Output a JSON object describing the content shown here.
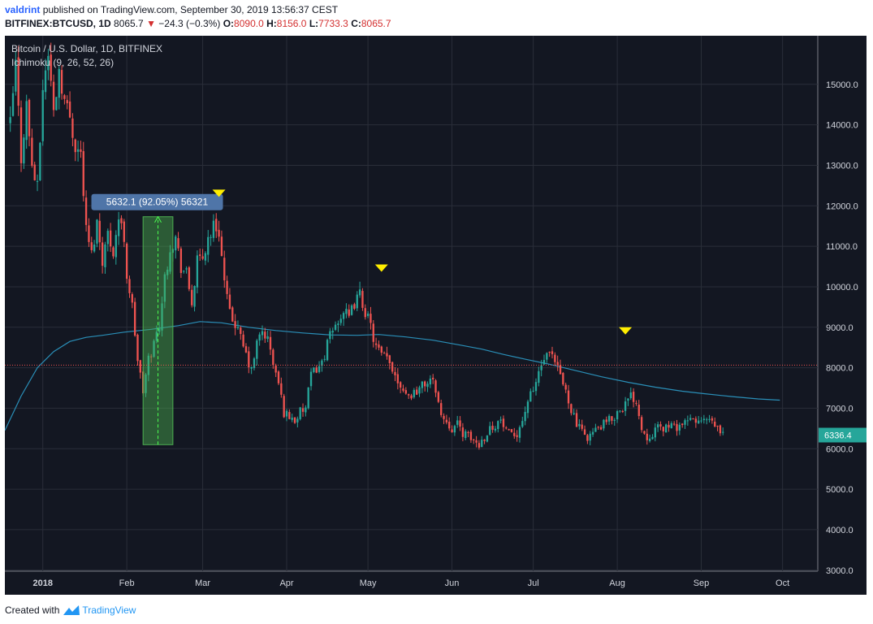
{
  "header": {
    "author": "valdrint",
    "published_text": "published on TradingView.com, September 30, 2019 13:56:37 CEST",
    "symbol": "BITFINEX:BTCUSD, 1D",
    "last": "8065.7",
    "change": "−24.3 (−0.3%)",
    "open_label": "O:",
    "open": "8090.0",
    "high_label": "H:",
    "high": "8156.0",
    "low_label": "L:",
    "low": "7733.3",
    "close_label": "C:",
    "close": "8065.7"
  },
  "legend": {
    "instrument": "Bitcoin / U.S. Dollar, 1D, BITFINEX",
    "indicator": "Ichimoku (9, 26, 52, 26)"
  },
  "footer": {
    "created_with": "Created with",
    "brand": "TradingView",
    "logo_icon": "tradingview-logo-icon"
  },
  "colors": {
    "background": "#131722",
    "up": "#26a69a",
    "down": "#ef5350",
    "ma_line": "#2a8fb8",
    "marker": "#ffee00",
    "price_badge": "#26a69a"
  },
  "chart_data": {
    "type": "candlestick",
    "y_ticks": [
      "15000.0",
      "14000.0",
      "13000.0",
      "12000.0",
      "11000.0",
      "10000.0",
      "9000.0",
      "8000.0",
      "7000.0",
      "6000.0",
      "5000.0",
      "4000.0",
      "3000.0"
    ],
    "y_tick_values": [
      15000,
      14000,
      13000,
      12000,
      11000,
      10000,
      9000,
      8000,
      7000,
      6000,
      5000,
      4000,
      3000
    ],
    "ylim": [
      2975,
      16200
    ],
    "x_ticks": [
      {
        "label": "2018",
        "day": 0
      },
      {
        "label": "Feb",
        "day": 31
      },
      {
        "label": "Mar",
        "day": 59
      },
      {
        "label": "Apr",
        "day": 90
      },
      {
        "label": "May",
        "day": 120
      },
      {
        "label": "Jun",
        "day": 151
      },
      {
        "label": "Jul",
        "day": 181
      },
      {
        "label": "Aug",
        "day": 212
      },
      {
        "label": "Sep",
        "day": 243
      },
      {
        "label": "Oct",
        "day": 273
      }
    ],
    "xlim": [
      -14,
      286
    ],
    "last_price_label": "6336.4",
    "last_price": 6336.4,
    "reference_line": 8065.7,
    "measure": {
      "label": "5632.1 (92.05%) 56321",
      "day_start": 37,
      "day_end": 48,
      "low": 6100,
      "high": 11730
    },
    "markers": [
      {
        "day": 65,
        "price": 12300
      },
      {
        "day": 125,
        "price": 10450
      },
      {
        "day": 215,
        "price": 8900
      }
    ],
    "price_path": [
      [
        -12,
        14000
      ],
      [
        -10,
        15500
      ],
      [
        -8,
        13200
      ],
      [
        -6,
        14500
      ],
      [
        -4,
        13000
      ],
      [
        -2,
        12400
      ],
      [
        0,
        14900
      ],
      [
        2,
        15800
      ],
      [
        4,
        14300
      ],
      [
        6,
        15400
      ],
      [
        8,
        14600
      ],
      [
        10,
        14200
      ],
      [
        12,
        13500
      ],
      [
        14,
        13300
      ],
      [
        16,
        11400
      ],
      [
        18,
        10800
      ],
      [
        20,
        11600
      ],
      [
        22,
        10700
      ],
      [
        24,
        11300
      ],
      [
        26,
        10900
      ],
      [
        28,
        11700
      ],
      [
        30,
        11200
      ],
      [
        31,
        10300
      ],
      [
        33,
        9500
      ],
      [
        35,
        8200
      ],
      [
        37,
        7400
      ],
      [
        39,
        8200
      ],
      [
        41,
        8600
      ],
      [
        43,
        9100
      ],
      [
        45,
        10200
      ],
      [
        47,
        11000
      ],
      [
        49,
        11200
      ],
      [
        51,
        10500
      ],
      [
        53,
        10300
      ],
      [
        55,
        9600
      ],
      [
        57,
        10600
      ],
      [
        59,
        10700
      ],
      [
        61,
        11200
      ],
      [
        63,
        11500
      ],
      [
        65,
        11400
      ],
      [
        67,
        10100
      ],
      [
        69,
        9300
      ],
      [
        71,
        9100
      ],
      [
        73,
        8700
      ],
      [
        75,
        8300
      ],
      [
        77,
        7900
      ],
      [
        79,
        8600
      ],
      [
        81,
        8900
      ],
      [
        83,
        8700
      ],
      [
        85,
        8100
      ],
      [
        87,
        7600
      ],
      [
        89,
        6900
      ],
      [
        91,
        6800
      ],
      [
        93,
        6700
      ],
      [
        95,
        6900
      ],
      [
        97,
        7000
      ],
      [
        99,
        7800
      ],
      [
        101,
        8000
      ],
      [
        103,
        8100
      ],
      [
        105,
        8600
      ],
      [
        107,
        8900
      ],
      [
        109,
        9200
      ],
      [
        111,
        9400
      ],
      [
        113,
        9200
      ],
      [
        115,
        9600
      ],
      [
        117,
        9800
      ],
      [
        119,
        9400
      ],
      [
        121,
        9000
      ],
      [
        123,
        8500
      ],
      [
        125,
        8300
      ],
      [
        127,
        8200
      ],
      [
        129,
        8000
      ],
      [
        131,
        7700
      ],
      [
        133,
        7500
      ],
      [
        135,
        7300
      ],
      [
        137,
        7400
      ],
      [
        139,
        7500
      ],
      [
        141,
        7600
      ],
      [
        143,
        7700
      ],
      [
        145,
        7500
      ],
      [
        147,
        6800
      ],
      [
        149,
        6700
      ],
      [
        151,
        6500
      ],
      [
        153,
        6600
      ],
      [
        155,
        6400
      ],
      [
        157,
        6300
      ],
      [
        159,
        6200
      ],
      [
        161,
        6100
      ],
      [
        163,
        6300
      ],
      [
        165,
        6500
      ],
      [
        167,
        6600
      ],
      [
        169,
        6700
      ],
      [
        171,
        6400
      ],
      [
        173,
        6300
      ],
      [
        175,
        6400
      ],
      [
        177,
        6700
      ],
      [
        179,
        7200
      ],
      [
        181,
        7400
      ],
      [
        183,
        7900
      ],
      [
        185,
        8200
      ],
      [
        187,
        8300
      ],
      [
        189,
        8100
      ],
      [
        191,
        7800
      ],
      [
        193,
        7400
      ],
      [
        195,
        7000
      ],
      [
        197,
        6600
      ],
      [
        199,
        6400
      ],
      [
        201,
        6300
      ],
      [
        203,
        6400
      ],
      [
        205,
        6500
      ],
      [
        207,
        6600
      ],
      [
        209,
        6700
      ],
      [
        211,
        6800
      ],
      [
        213,
        7000
      ],
      [
        215,
        7100
      ],
      [
        217,
        7300
      ],
      [
        219,
        7200
      ],
      [
        221,
        6500
      ],
      [
        223,
        6300
      ],
      [
        225,
        6400
      ],
      [
        227,
        6500
      ],
      [
        229,
        6500
      ],
      [
        231,
        6600
      ],
      [
        233,
        6500
      ],
      [
        235,
        6600
      ],
      [
        237,
        6600
      ],
      [
        239,
        6700
      ],
      [
        241,
        6700
      ],
      [
        243,
        6650
      ],
      [
        245,
        6700
      ],
      [
        247,
        6600
      ],
      [
        249,
        6500
      ],
      [
        251,
        6336
      ]
    ],
    "ma_path": [
      [
        -14,
        6450
      ],
      [
        -8,
        7300
      ],
      [
        -2,
        8000
      ],
      [
        4,
        8400
      ],
      [
        10,
        8650
      ],
      [
        16,
        8750
      ],
      [
        22,
        8800
      ],
      [
        30,
        8880
      ],
      [
        40,
        8950
      ],
      [
        50,
        9040
      ],
      [
        58,
        9140
      ],
      [
        66,
        9110
      ],
      [
        76,
        9000
      ],
      [
        86,
        8920
      ],
      [
        96,
        8860
      ],
      [
        106,
        8810
      ],
      [
        116,
        8800
      ],
      [
        124,
        8820
      ],
      [
        134,
        8760
      ],
      [
        144,
        8680
      ],
      [
        154,
        8560
      ],
      [
        162,
        8460
      ],
      [
        170,
        8330
      ],
      [
        178,
        8210
      ],
      [
        186,
        8100
      ],
      [
        196,
        7940
      ],
      [
        206,
        7780
      ],
      [
        216,
        7640
      ],
      [
        226,
        7520
      ],
      [
        236,
        7420
      ],
      [
        244,
        7360
      ],
      [
        254,
        7290
      ],
      [
        264,
        7230
      ],
      [
        272,
        7200
      ]
    ]
  }
}
